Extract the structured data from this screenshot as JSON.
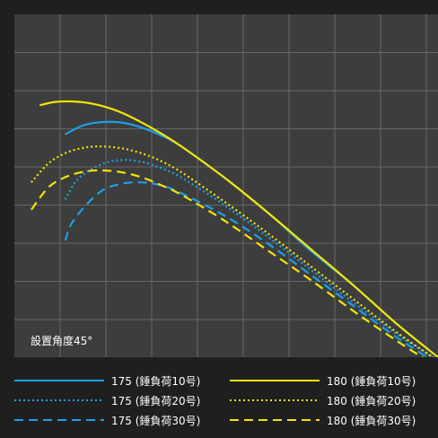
{
  "chart_data": {
    "type": "line",
    "annotation": "設置角度45°",
    "grid": true,
    "xlim": [
      0,
      10
    ],
    "ylim": [
      0,
      10
    ],
    "legend_position": "bottom",
    "series": [
      {
        "name": "175 (錘負荷10号)",
        "color": "#1e9ee8",
        "style": "solid",
        "x": [
          1.2,
          1.6,
          2.0,
          2.5,
          3.0,
          3.5,
          4.0,
          5.0,
          6.0,
          7.0,
          8.0,
          9.0,
          10.0
        ],
        "y": [
          6.5,
          6.75,
          6.85,
          6.85,
          6.7,
          6.45,
          6.1,
          5.2,
          4.2,
          3.1,
          2.1,
          1.0,
          0.0
        ]
      },
      {
        "name": "175 (錘負荷20号)",
        "color": "#1e9ee8",
        "style": "dotted",
        "x": [
          1.2,
          1.5,
          2.0,
          2.5,
          3.0,
          3.5,
          4.0,
          5.0,
          6.0,
          7.0,
          8.0,
          9.0,
          10.0
        ],
        "y": [
          4.6,
          5.2,
          5.6,
          5.75,
          5.7,
          5.5,
          5.2,
          4.4,
          3.5,
          2.55,
          1.6,
          0.7,
          -0.1
        ]
      },
      {
        "name": "175 (錘負荷30号)",
        "color": "#1e9ee8",
        "style": "dashed",
        "x": [
          1.2,
          1.4,
          2.0,
          2.5,
          3.0,
          3.5,
          4.0,
          5.0,
          6.0,
          7.0,
          8.0,
          9.0,
          10.0
        ],
        "y": [
          3.4,
          4.0,
          4.8,
          5.05,
          5.1,
          5.0,
          4.75,
          4.1,
          3.3,
          2.4,
          1.5,
          0.6,
          -0.2
        ]
      },
      {
        "name": "180 (錘負荷10号)",
        "color": "#f2e600",
        "style": "solid",
        "x": [
          0.6,
          1.0,
          1.5,
          2.0,
          2.5,
          3.0,
          3.5,
          4.0,
          5.0,
          6.0,
          7.0,
          8.0,
          9.0,
          10.0
        ],
        "y": [
          7.35,
          7.45,
          7.45,
          7.35,
          7.15,
          6.85,
          6.5,
          6.1,
          5.2,
          4.2,
          3.15,
          2.1,
          1.0,
          0.0
        ]
      },
      {
        "name": "180 (錘負荷20号)",
        "color": "#f2e600",
        "style": "dotted",
        "x": [
          0.4,
          0.8,
          1.2,
          1.6,
          2.0,
          2.5,
          3.0,
          3.5,
          4.0,
          5.0,
          6.0,
          7.0,
          8.0,
          9.0,
          10.0
        ],
        "y": [
          5.1,
          5.65,
          5.95,
          6.1,
          6.15,
          6.1,
          5.95,
          5.7,
          5.35,
          4.5,
          3.6,
          2.65,
          1.7,
          0.75,
          -0.1
        ]
      },
      {
        "name": "180 (錘負荷30号)",
        "color": "#f2e600",
        "style": "dashed",
        "x": [
          0.4,
          0.8,
          1.2,
          1.6,
          2.0,
          2.5,
          3.0,
          3.5,
          4.0,
          5.0,
          6.0,
          7.0,
          8.0,
          9.0,
          10.0
        ],
        "y": [
          4.3,
          4.95,
          5.25,
          5.4,
          5.45,
          5.4,
          5.25,
          5.0,
          4.7,
          3.95,
          3.1,
          2.25,
          1.35,
          0.5,
          -0.3
        ]
      }
    ]
  }
}
